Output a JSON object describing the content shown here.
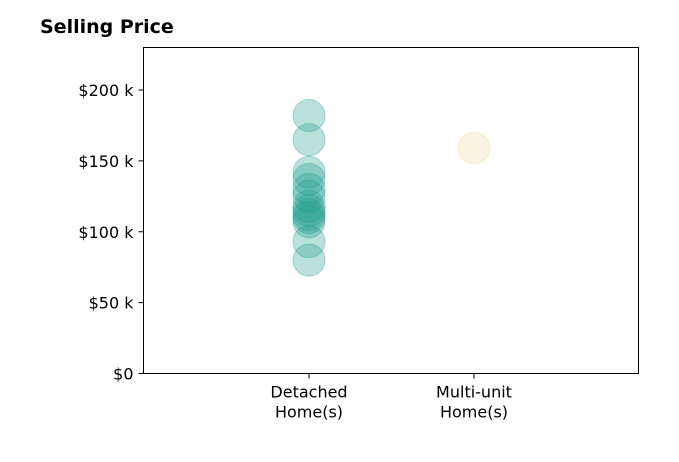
{
  "chart_data": {
    "type": "scatter",
    "title": "Selling Price",
    "xlabel": "",
    "ylabel": "",
    "categories": [
      [
        "Detached",
        "Home(s)"
      ],
      [
        "Multi-unit",
        "Home(s)"
      ]
    ],
    "ylim": [
      0,
      230000
    ],
    "yticks": [
      {
        "value": 0,
        "label": "$0"
      },
      {
        "value": 50000,
        "label": "$50 k"
      },
      {
        "value": 100000,
        "label": "$100 k"
      },
      {
        "value": 150000,
        "label": "$150 k"
      },
      {
        "value": 200000,
        "label": "$200 k"
      }
    ],
    "grid": false,
    "series": [
      {
        "category": 0,
        "color": "#1a9c8c",
        "values": [
          182000,
          165000,
          142000,
          137000,
          130000,
          125000,
          118000,
          115000,
          112000,
          110000,
          107000,
          93000,
          80000
        ]
      },
      {
        "category": 1,
        "color": "#f0d79b",
        "values": [
          159000
        ]
      }
    ]
  }
}
